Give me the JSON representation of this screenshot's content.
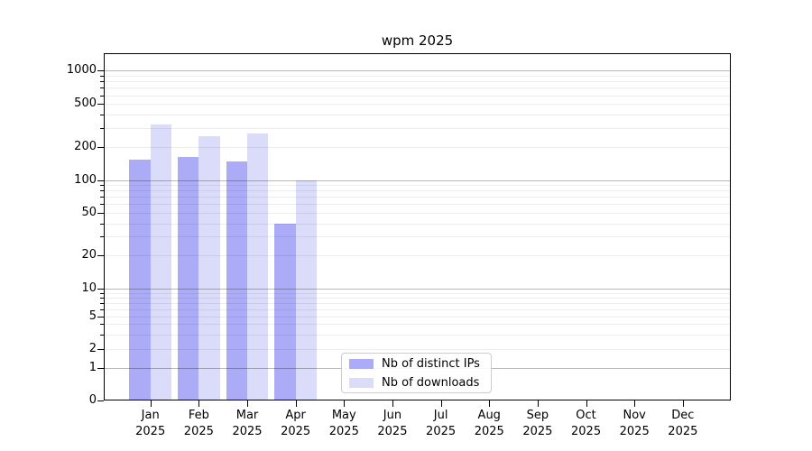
{
  "chart_data": {
    "type": "bar",
    "title": "wpm 2025",
    "categories": [
      "Jan 2025",
      "Feb 2025",
      "Mar 2025",
      "Apr 2025",
      "May 2025",
      "Jun 2025",
      "Jul 2025",
      "Aug 2025",
      "Sep 2025",
      "Oct 2025",
      "Nov 2025",
      "Dec 2025"
    ],
    "series": [
      {
        "name": "Nb of distinct IPs",
        "color": "#ababf7",
        "values": [
          153,
          161,
          148,
          40,
          null,
          null,
          null,
          null,
          null,
          null,
          null,
          null
        ]
      },
      {
        "name": "Nb of downloads",
        "color": "#dbdbfa",
        "values": [
          325,
          252,
          265,
          100,
          null,
          null,
          null,
          null,
          null,
          null,
          null,
          null
        ]
      }
    ],
    "y_scale": "symlog",
    "y_ticks": [
      0,
      1,
      2,
      5,
      10,
      20,
      50,
      100,
      200,
      500,
      1000
    ],
    "y_minor_ticks": [
      2,
      3,
      4,
      5,
      6,
      7,
      8,
      9,
      20,
      30,
      40,
      50,
      60,
      70,
      80,
      90,
      200,
      300,
      400,
      500,
      600,
      700,
      800,
      900
    ],
    "ylim": [
      0,
      1400
    ],
    "xlabel": "",
    "ylabel": "",
    "grid": "horizontal, major dark + minor faint, drawn over bars",
    "legend_position": "lower center",
    "colors": {
      "major_grid": "#b8b8b8",
      "minor_grid": "#ededed",
      "axis": "#000000",
      "background": "#ffffff"
    }
  }
}
